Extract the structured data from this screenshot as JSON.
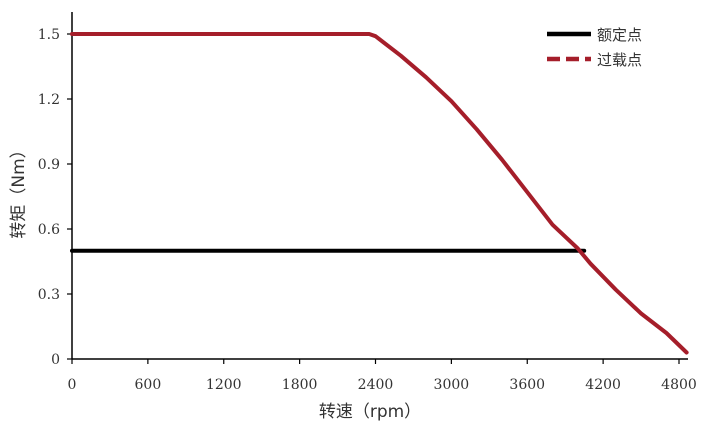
{
  "chart_data": {
    "type": "line",
    "title": "",
    "xlabel": "转速（rpm）",
    "ylabel": "转矩（Nm）",
    "xlim": [
      0,
      4860
    ],
    "ylim": [
      0,
      1.6
    ],
    "xticks": [
      0,
      600,
      1200,
      1800,
      2400,
      3000,
      3600,
      4200,
      4800
    ],
    "yticks": [
      0,
      0.3,
      0.6,
      0.9,
      1.2,
      1.5
    ],
    "ytick_labels": [
      "0",
      "0.3",
      "0.6",
      "0.9",
      "1.2",
      "1.5"
    ],
    "grid": false,
    "legend": "top-right",
    "series": [
      {
        "name": "额定点",
        "color": "#000000",
        "style": "solid",
        "x": [
          0,
          4050
        ],
        "y": [
          0.5,
          0.5
        ]
      },
      {
        "name": "过载点",
        "color": "#a51e2a",
        "style": "dashed-solid",
        "x": [
          0,
          2350,
          2400,
          2600,
          2800,
          3000,
          3200,
          3400,
          3600,
          3800,
          4000,
          4100,
          4300,
          4500,
          4700,
          4860
        ],
        "y": [
          1.5,
          1.5,
          1.49,
          1.4,
          1.3,
          1.19,
          1.06,
          0.92,
          0.77,
          0.62,
          0.51,
          0.44,
          0.32,
          0.21,
          0.12,
          0.03
        ]
      }
    ]
  }
}
